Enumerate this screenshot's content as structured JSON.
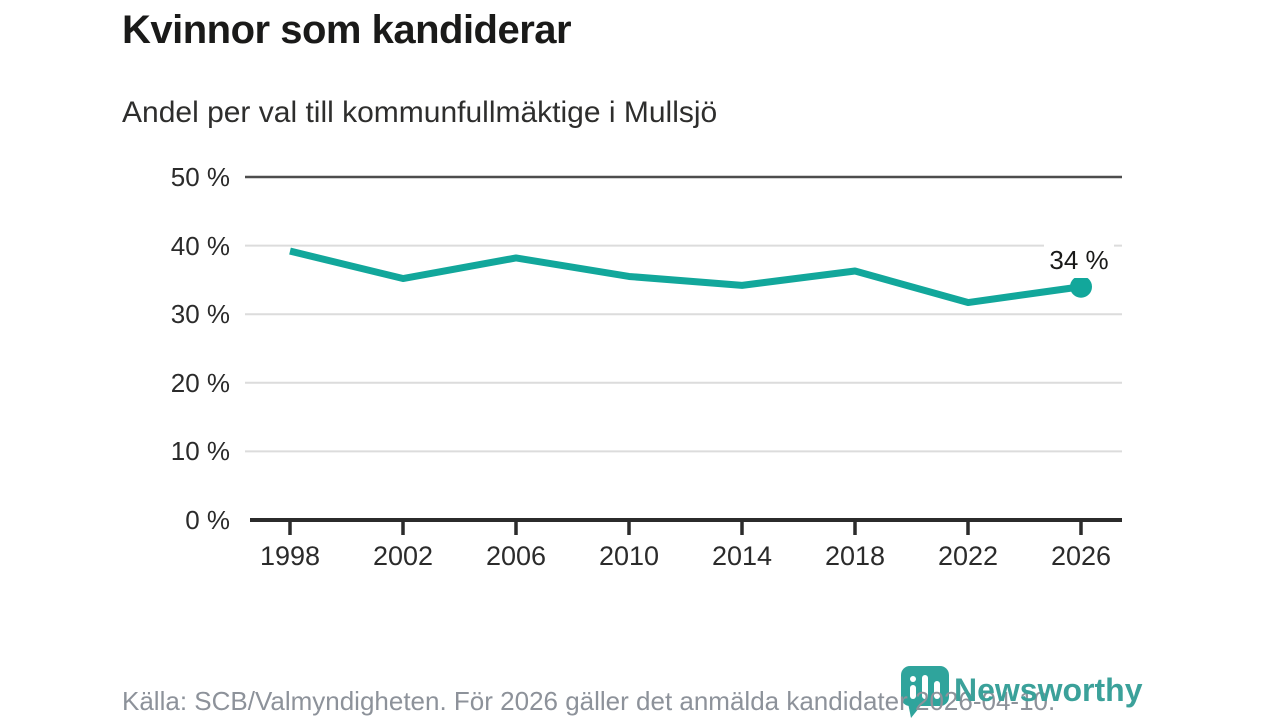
{
  "header": {
    "title": "Kvinnor som kandiderar",
    "subtitle": "Andel per val till kommunfullmäktige i Mullsjö"
  },
  "chart_data": {
    "type": "line",
    "title": "Kvinnor som kandiderar",
    "subtitle": "Andel per val till kommunfullmäktige i Mullsjö",
    "x": [
      1998,
      2002,
      2006,
      2010,
      2014,
      2018,
      2022,
      2026
    ],
    "values": [
      39.2,
      35.2,
      38.2,
      35.5,
      34.2,
      36.3,
      31.7,
      34
    ],
    "unit": "%",
    "end_label": "34 %",
    "xlabel": "",
    "ylabel": "",
    "ylim": [
      0,
      50
    ],
    "yticks": [
      {
        "value": 0,
        "label": "0 %"
      },
      {
        "value": 10,
        "label": "10 %"
      },
      {
        "value": 20,
        "label": "20 %"
      },
      {
        "value": 30,
        "label": "30 %"
      },
      {
        "value": 40,
        "label": "40 %"
      },
      {
        "value": 50,
        "label": "50 %"
      }
    ],
    "xticks": [
      "1998",
      "2002",
      "2006",
      "2010",
      "2014",
      "2018",
      "2022",
      "2026"
    ],
    "grid": "horizontal",
    "legend": "none",
    "marker_on_last_point_only": true
  },
  "colors": {
    "line": "#12a79b",
    "marker": "#12a79b",
    "grid_light": "#dcdcdc",
    "grid_top_dark": "#4d4d4d",
    "axis": "#2b2b2b",
    "tick_text": "#2b2b2b",
    "title_text": "#1a1a19",
    "subtitle_text": "#2e2e2d",
    "footer_text": "#8d929a",
    "logo_teal": "#3ba19a",
    "logo_icon_teal": "#2fa49c"
  },
  "footer": {
    "source": "Källa: SCB/Valmyndigheten. För 2026 gäller det anmälda kandidater 2026-04-10.",
    "logo": {
      "text": "Newsworthy",
      "icon": "newsworthy-pin-barchart-icon"
    }
  }
}
